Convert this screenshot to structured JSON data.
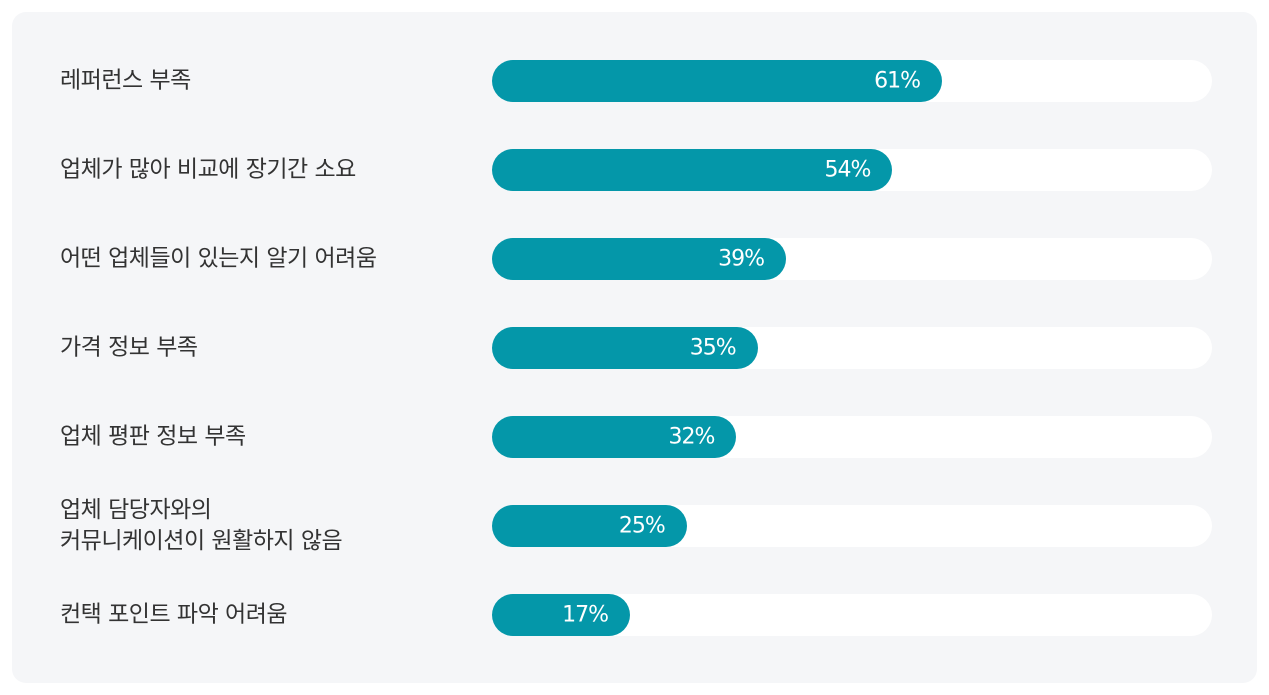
{
  "colors": {
    "bar": "#0497a9",
    "track": "#ffffff",
    "panel": "#f5f6f8",
    "text": "#333333"
  },
  "chart_data": {
    "type": "bar",
    "orientation": "horizontal",
    "title": "",
    "xlabel": "",
    "ylabel": "",
    "xlim": [
      0,
      100
    ],
    "grid": false,
    "categories": [
      "레퍼런스 부족",
      "업체가 많아 비교에 장기간 소요",
      "어떤 업체들이 있는지 알기 어려움",
      "가격 정보 부족",
      "업체 평판 정보 부족",
      "업체 담당자와의\n커뮤니케이션이 원활하지 않음",
      "컨택 포인트 파악 어려움"
    ],
    "values": [
      61,
      54,
      39,
      35,
      32,
      25,
      17
    ],
    "value_labels": [
      "61%",
      "54%",
      "39%",
      "35%",
      "32%",
      "25%",
      "17%"
    ]
  }
}
